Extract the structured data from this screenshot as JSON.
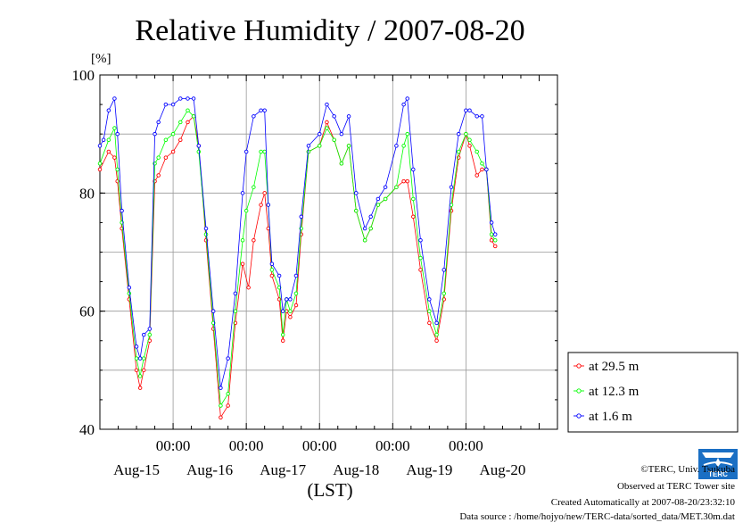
{
  "chart_data": {
    "type": "line",
    "title": "Relative Humidity / 2007-08-20",
    "ylabel": "[%]",
    "xlabel": "(LST)",
    "ylim": [
      40,
      100
    ],
    "xlim": [
      0,
      6.25
    ],
    "y_ticks": [
      "100",
      "80",
      "60",
      "40"
    ],
    "x_time_ticks": [
      "00:00",
      "00:00",
      "00:00",
      "00:00",
      "00:00"
    ],
    "x_date_labels": [
      "Aug-15",
      "Aug-16",
      "Aug-17",
      "Aug-18",
      "Aug-19",
      "Aug-20"
    ],
    "grid": true,
    "legend_position": "right",
    "series": [
      {
        "name": "at 29.5 m",
        "color": "#ff0000",
        "points": [
          [
            0,
            84
          ],
          [
            0.12,
            87
          ],
          [
            0.2,
            86
          ],
          [
            0.24,
            82
          ],
          [
            0.3,
            74
          ],
          [
            0.4,
            62
          ],
          [
            0.5,
            50
          ],
          [
            0.55,
            47
          ],
          [
            0.6,
            50
          ],
          [
            0.68,
            55
          ],
          [
            0.75,
            82
          ],
          [
            0.8,
            83
          ],
          [
            0.9,
            86
          ],
          [
            1.0,
            87
          ],
          [
            1.1,
            89
          ],
          [
            1.2,
            92
          ],
          [
            1.28,
            93
          ],
          [
            1.35,
            88
          ],
          [
            1.45,
            72
          ],
          [
            1.55,
            57
          ],
          [
            1.65,
            42
          ],
          [
            1.75,
            44
          ],
          [
            1.85,
            58
          ],
          [
            1.95,
            68
          ],
          [
            2.03,
            64
          ],
          [
            2.1,
            72
          ],
          [
            2.2,
            78
          ],
          [
            2.25,
            80
          ],
          [
            2.3,
            74
          ],
          [
            2.35,
            66
          ],
          [
            2.45,
            62
          ],
          [
            2.5,
            55
          ],
          [
            2.55,
            60
          ],
          [
            2.6,
            59
          ],
          [
            2.68,
            61
          ],
          [
            2.75,
            73
          ],
          [
            2.85,
            87
          ],
          [
            3.0,
            88
          ],
          [
            3.1,
            92
          ],
          [
            3.2,
            89
          ],
          [
            3.3,
            85
          ],
          [
            3.4,
            88
          ],
          [
            3.5,
            77
          ],
          [
            3.62,
            72
          ],
          [
            3.7,
            74
          ],
          [
            3.8,
            78
          ],
          [
            3.9,
            79
          ],
          [
            4.05,
            81
          ],
          [
            4.15,
            82
          ],
          [
            4.2,
            82
          ],
          [
            4.28,
            76
          ],
          [
            4.38,
            67
          ],
          [
            4.5,
            58
          ],
          [
            4.6,
            55
          ],
          [
            4.7,
            62
          ],
          [
            4.8,
            77
          ],
          [
            4.9,
            86
          ],
          [
            5.0,
            90
          ],
          [
            5.05,
            88
          ],
          [
            5.15,
            83
          ],
          [
            5.22,
            84
          ],
          [
            5.28,
            84
          ],
          [
            5.35,
            72
          ],
          [
            5.4,
            71
          ]
        ]
      },
      {
        "name": "at 12.3 m",
        "color": "#00ff00",
        "points": [
          [
            0,
            85
          ],
          [
            0.12,
            89
          ],
          [
            0.2,
            91
          ],
          [
            0.24,
            84
          ],
          [
            0.3,
            75
          ],
          [
            0.4,
            63
          ],
          [
            0.5,
            52
          ],
          [
            0.55,
            49
          ],
          [
            0.6,
            52
          ],
          [
            0.68,
            56
          ],
          [
            0.75,
            85
          ],
          [
            0.8,
            86
          ],
          [
            0.9,
            89
          ],
          [
            1.0,
            90
          ],
          [
            1.1,
            92
          ],
          [
            1.2,
            94
          ],
          [
            1.28,
            93
          ],
          [
            1.35,
            87
          ],
          [
            1.45,
            73
          ],
          [
            1.55,
            58
          ],
          [
            1.65,
            44
          ],
          [
            1.75,
            46
          ],
          [
            1.85,
            60
          ],
          [
            1.95,
            72
          ],
          [
            2.0,
            77
          ],
          [
            2.1,
            81
          ],
          [
            2.2,
            87
          ],
          [
            2.25,
            87
          ],
          [
            2.3,
            78
          ],
          [
            2.35,
            67
          ],
          [
            2.45,
            64
          ],
          [
            2.5,
            56
          ],
          [
            2.55,
            62
          ],
          [
            2.6,
            60
          ],
          [
            2.68,
            63
          ],
          [
            2.75,
            74
          ],
          [
            2.85,
            87
          ],
          [
            3.0,
            88
          ],
          [
            3.1,
            91
          ],
          [
            3.2,
            89
          ],
          [
            3.3,
            85
          ],
          [
            3.4,
            88
          ],
          [
            3.5,
            77
          ],
          [
            3.62,
            72
          ],
          [
            3.7,
            74
          ],
          [
            3.8,
            78
          ],
          [
            3.9,
            79
          ],
          [
            4.05,
            81
          ],
          [
            4.15,
            88
          ],
          [
            4.2,
            90
          ],
          [
            4.28,
            79
          ],
          [
            4.38,
            69
          ],
          [
            4.5,
            60
          ],
          [
            4.6,
            56
          ],
          [
            4.7,
            63
          ],
          [
            4.8,
            78
          ],
          [
            4.9,
            87
          ],
          [
            5.0,
            90
          ],
          [
            5.05,
            89
          ],
          [
            5.15,
            87
          ],
          [
            5.22,
            85
          ],
          [
            5.28,
            84
          ],
          [
            5.35,
            73
          ],
          [
            5.4,
            72
          ]
        ]
      },
      {
        "name": "at 1.6 m",
        "color": "#0000ff",
        "points": [
          [
            0,
            88
          ],
          [
            0.05,
            89
          ],
          [
            0.12,
            94
          ],
          [
            0.2,
            96
          ],
          [
            0.24,
            90
          ],
          [
            0.3,
            77
          ],
          [
            0.4,
            64
          ],
          [
            0.5,
            54
          ],
          [
            0.55,
            52
          ],
          [
            0.6,
            56
          ],
          [
            0.68,
            57
          ],
          [
            0.75,
            90
          ],
          [
            0.8,
            92
          ],
          [
            0.9,
            95
          ],
          [
            1.0,
            95
          ],
          [
            1.1,
            96
          ],
          [
            1.2,
            96
          ],
          [
            1.28,
            96
          ],
          [
            1.35,
            88
          ],
          [
            1.45,
            74
          ],
          [
            1.55,
            60
          ],
          [
            1.65,
            47
          ],
          [
            1.75,
            52
          ],
          [
            1.85,
            63
          ],
          [
            1.95,
            80
          ],
          [
            2.0,
            87
          ],
          [
            2.1,
            93
          ],
          [
            2.2,
            94
          ],
          [
            2.25,
            94
          ],
          [
            2.3,
            78
          ],
          [
            2.35,
            68
          ],
          [
            2.45,
            66
          ],
          [
            2.5,
            60
          ],
          [
            2.55,
            62
          ],
          [
            2.6,
            62
          ],
          [
            2.68,
            66
          ],
          [
            2.75,
            76
          ],
          [
            2.85,
            88
          ],
          [
            3.0,
            90
          ],
          [
            3.1,
            95
          ],
          [
            3.2,
            93
          ],
          [
            3.3,
            90
          ],
          [
            3.4,
            93
          ],
          [
            3.5,
            80
          ],
          [
            3.62,
            74
          ],
          [
            3.7,
            76
          ],
          [
            3.8,
            79
          ],
          [
            3.9,
            81
          ],
          [
            4.05,
            88
          ],
          [
            4.15,
            95
          ],
          [
            4.2,
            96
          ],
          [
            4.28,
            84
          ],
          [
            4.38,
            72
          ],
          [
            4.5,
            62
          ],
          [
            4.6,
            58
          ],
          [
            4.7,
            67
          ],
          [
            4.8,
            81
          ],
          [
            4.9,
            90
          ],
          [
            5.0,
            94
          ],
          [
            5.05,
            94
          ],
          [
            5.15,
            93
          ],
          [
            5.22,
            93
          ],
          [
            5.28,
            84
          ],
          [
            5.35,
            75
          ],
          [
            5.4,
            73
          ]
        ]
      }
    ]
  },
  "footer": {
    "copyright": "©TERC, Univ. Tsukuba",
    "observed": "Observed at TERC Tower site",
    "created": "Created Automatically at 2007-08-20/23:32:10",
    "source": "Data source : /home/hojyo/new/TERC-data/sorted_data/MET.30m.dat"
  },
  "logo": {
    "text": "TERC",
    "color": "#1a6fc4",
    "icon": "terc-logo-icon"
  }
}
